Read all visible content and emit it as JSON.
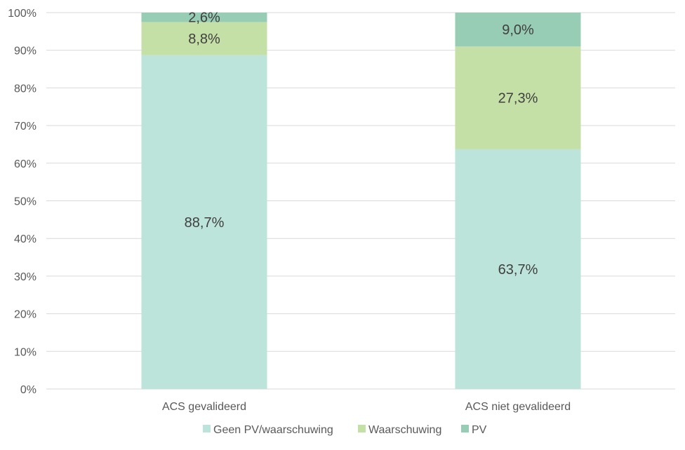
{
  "chart_data": {
    "type": "bar",
    "stacked": true,
    "categories": [
      "ACS gevalideerd",
      "ACS niet gevalideerd"
    ],
    "series": [
      {
        "name": "Geen PV/waarschuwing",
        "values": [
          88.7,
          63.7
        ],
        "labels": [
          "88,7%",
          "63,7%"
        ],
        "color": "#bce4da"
      },
      {
        "name": "Waarschuwing",
        "values": [
          8.8,
          27.3
        ],
        "labels": [
          "8,8%",
          "27,3%"
        ],
        "color": "#c5e0a6"
      },
      {
        "name": "PV",
        "values": [
          2.6,
          9.0
        ],
        "labels": [
          "2,6%",
          "9,0%"
        ],
        "color": "#97ccb5"
      }
    ],
    "yticks": [
      "0%",
      "10%",
      "20%",
      "30%",
      "40%",
      "50%",
      "60%",
      "70%",
      "80%",
      "90%",
      "100%"
    ],
    "ylim": [
      0,
      100
    ],
    "grid": true,
    "legend_position": "bottom"
  }
}
